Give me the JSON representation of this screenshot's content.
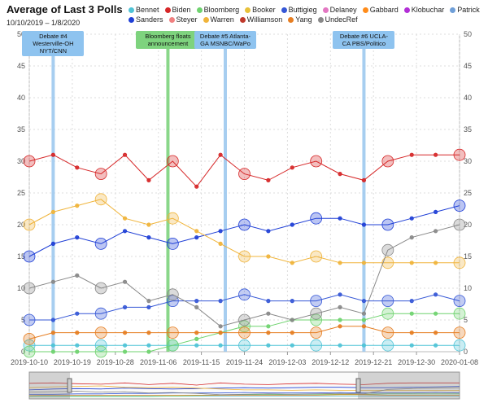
{
  "header": {
    "title": "Average of Last 3 Polls",
    "date_range": "10/10/2019 – 1/8/2020"
  },
  "legend": [
    {
      "name": "Bennet",
      "color": "#4fc3d6"
    },
    {
      "name": "Biden",
      "color": "#d62728"
    },
    {
      "name": "Bloomberg",
      "color": "#6fd36f"
    },
    {
      "name": "Booker",
      "color": "#e8c13a"
    },
    {
      "name": "Buttigieg",
      "color": "#3557d6"
    },
    {
      "name": "Delaney",
      "color": "#e377c2"
    },
    {
      "name": "Gabbard",
      "color": "#ff8c1a"
    },
    {
      "name": "Klobuchar",
      "color": "#b22fd6"
    },
    {
      "name": "Patrick",
      "color": "#6f9fd8"
    },
    {
      "name": "Sanders",
      "color": "#1f3fd6"
    },
    {
      "name": "Steyer",
      "color": "#f08080"
    },
    {
      "name": "Warren",
      "color": "#f0b43a"
    },
    {
      "name": "Williamson",
      "color": "#c0392b"
    },
    {
      "name": "Yang",
      "color": "#e67e22"
    },
    {
      "name": "UndecRef",
      "color": "#888888"
    }
  ],
  "annotations": [
    {
      "date": "2019-10-15",
      "text": "Debate #4\nWesterville-OH\nNYT/CNN",
      "kind": "debate"
    },
    {
      "date": "2019-11-08",
      "text": "Bloomberg floats\nannouncement",
      "kind": "event"
    },
    {
      "date": "2019-11-20",
      "text": "Debate #5 Atlanta-\nGA MSNBC/WaPo",
      "kind": "debate"
    },
    {
      "date": "2019-12-19",
      "text": "Debate #6 UCLA-\nCA PBS/Politico",
      "kind": "debate"
    }
  ],
  "chart_data": {
    "type": "line",
    "title": "Average of Last 3 Polls",
    "x_start": "2019-10-10",
    "x_end": "2020-01-08",
    "ylim": [
      0,
      50
    ],
    "y_ticks": [
      0,
      5,
      10,
      15,
      20,
      25,
      30,
      35,
      40,
      45,
      50
    ],
    "x_tick_labels": [
      "2019-10-10",
      "2019-10-19",
      "2019-10-28",
      "2019-11-06",
      "2019-11-15",
      "2019-11-24",
      "2019-12-03",
      "2019-12-12",
      "2019-12-21",
      "2019-12-30",
      "2020-01-08"
    ],
    "grid": true,
    "dates": [
      "2019-10-10",
      "2019-10-15",
      "2019-10-20",
      "2019-10-25",
      "2019-10-30",
      "2019-11-04",
      "2019-11-09",
      "2019-11-14",
      "2019-11-19",
      "2019-11-24",
      "2019-11-29",
      "2019-12-04",
      "2019-12-09",
      "2019-12-14",
      "2019-12-19",
      "2019-12-24",
      "2019-12-29",
      "2020-01-03",
      "2020-01-08"
    ],
    "series": [
      {
        "name": "Biden",
        "color": "#d62728",
        "values": [
          30,
          31,
          29,
          28,
          31,
          27,
          30,
          26,
          31,
          28,
          27,
          29,
          30,
          28,
          27,
          30,
          31,
          31,
          31
        ]
      },
      {
        "name": "Sanders",
        "color": "#1f3fd6",
        "values": [
          15,
          17,
          18,
          17,
          19,
          18,
          17,
          18,
          19,
          20,
          19,
          20,
          21,
          21,
          20,
          20,
          21,
          22,
          23
        ]
      },
      {
        "name": "Warren",
        "color": "#f0b43a",
        "values": [
          20,
          22,
          23,
          24,
          21,
          20,
          21,
          19,
          17,
          15,
          15,
          14,
          15,
          14,
          14,
          14,
          14,
          14,
          14
        ]
      },
      {
        "name": "Buttigieg",
        "color": "#3557d6",
        "values": [
          5,
          5,
          6,
          6,
          7,
          7,
          8,
          8,
          8,
          9,
          8,
          8,
          8,
          9,
          8,
          8,
          8,
          9,
          8
        ]
      },
      {
        "name": "Bennet",
        "color": "#4fc3d6",
        "values": [
          1,
          1,
          1,
          1,
          1,
          1,
          1,
          1,
          1,
          1,
          1,
          1,
          1,
          1,
          1,
          1,
          1,
          1,
          1
        ]
      },
      {
        "name": "Bloomberg",
        "color": "#6fd36f",
        "values": [
          0,
          0,
          0,
          0,
          0,
          0,
          1,
          2,
          3,
          4,
          4,
          5,
          5,
          5,
          5,
          6,
          6,
          6,
          6
        ]
      },
      {
        "name": "Yang",
        "color": "#e67e22",
        "values": [
          2,
          3,
          3,
          3,
          3,
          3,
          3,
          3,
          3,
          3,
          3,
          3,
          3,
          4,
          4,
          3,
          3,
          3,
          3
        ]
      },
      {
        "name": "UndecRef",
        "color": "#888888",
        "values": [
          10,
          11,
          12,
          10,
          11,
          8,
          9,
          7,
          4,
          5,
          6,
          5,
          6,
          7,
          6,
          16,
          18,
          19,
          20
        ]
      }
    ]
  }
}
